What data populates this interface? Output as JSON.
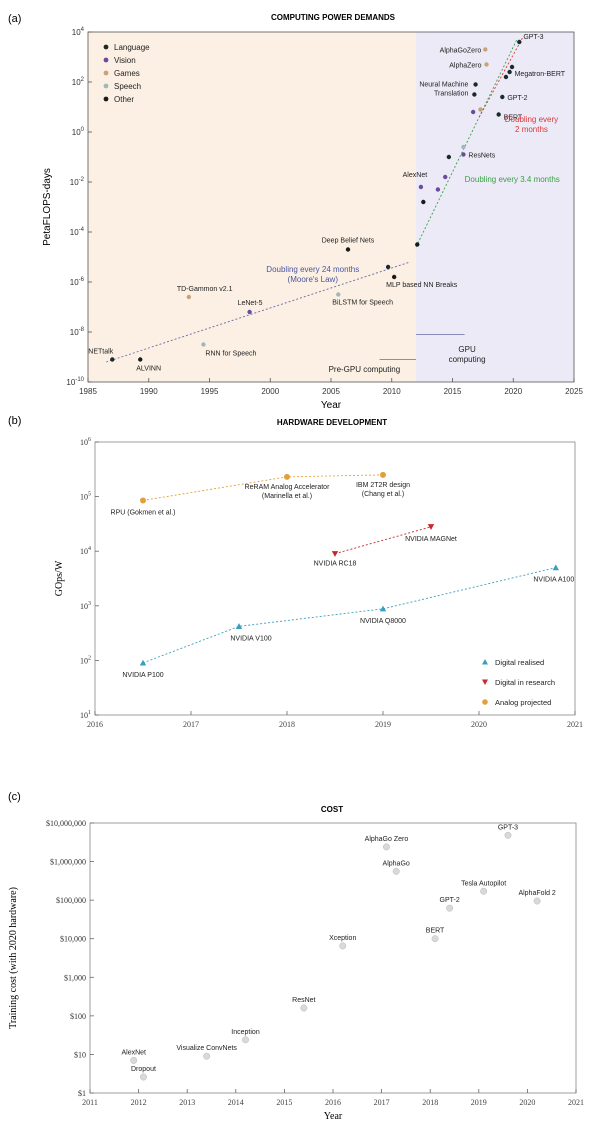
{
  "panels": {
    "a": {
      "label": "(a)"
    },
    "b": {
      "label": "(b)"
    },
    "c": {
      "label": "(c)"
    }
  },
  "colors": {
    "language": "#1b2b2b",
    "vision": "#6a4c9c",
    "games": "#c9a27a",
    "speech": "#9fb8b8",
    "other": "#1a1a1a",
    "pre_gpu_bg": "#fbf0e3",
    "gpu_bg": "#eceaf7",
    "moore_text": "#4a55a0",
    "gpu_text": "#3aa046",
    "red_text": "#d83a3a",
    "digital_realised": "#3a9fbf",
    "digital_research": "#c82828",
    "analog_projected": "#e1a03a",
    "cost_marker": "#d9d9d9"
  },
  "chart_data": [
    {
      "type": "scatter",
      "title": "COMPUTING POWER DEMANDS",
      "xlabel": "Year",
      "ylabel": "PetaFLOPS-days",
      "xlim": [
        1985,
        2025
      ],
      "ylim_log10": [
        -10,
        4
      ],
      "x_ticks": [
        "1985",
        "1990",
        "1995",
        "2000",
        "2005",
        "2010",
        "2015",
        "2020",
        "2025"
      ],
      "y_ticks": [
        "10^-10",
        "10^-8",
        "10^-6",
        "10^-4",
        "10^-2",
        "10^0",
        "10^2",
        "10^4"
      ],
      "legend_position": "top-left",
      "legend": [
        "Language",
        "Vision",
        "Games",
        "Speech",
        "Other"
      ],
      "points": [
        {
          "label": "NETtalk",
          "x": 1987,
          "y": -9.1,
          "cat": "language"
        },
        {
          "label": "ALVINN",
          "x": 1989.3,
          "y": -9.1,
          "cat": "other"
        },
        {
          "label": "TD-Gammon v2.1",
          "x": 1993.3,
          "y": -6.6,
          "cat": "games"
        },
        {
          "label": "RNN for Speech",
          "x": 1994.5,
          "y": -8.5,
          "cat": "speech"
        },
        {
          "label": "LeNet-5",
          "x": 1998.3,
          "y": -7.2,
          "cat": "vision"
        },
        {
          "label": "Deep Belief Nets",
          "x": 2006.4,
          "y": -4.7,
          "cat": "other"
        },
        {
          "label": "BiLSTM for Speech",
          "x": 2005.6,
          "y": -6.5,
          "cat": "speech"
        },
        {
          "label": "MLP based NN Breaks",
          "x": 2010.2,
          "y": -5.8,
          "cat": "other"
        },
        {
          "label": "",
          "x": 2009.7,
          "y": -5.4,
          "cat": "language"
        },
        {
          "label": "AlexNet",
          "x": 2012.4,
          "y": -2.2,
          "cat": "vision"
        },
        {
          "label": "",
          "x": 2012.1,
          "y": -4.5,
          "cat": "other"
        },
        {
          "label": "",
          "x": 2012.6,
          "y": -2.8,
          "cat": "other"
        },
        {
          "label": "",
          "x": 2013.8,
          "y": -2.3,
          "cat": "vision"
        },
        {
          "label": "",
          "x": 2014.4,
          "y": -1.8,
          "cat": "vision"
        },
        {
          "label": "",
          "x": 2014.7,
          "y": -1.0,
          "cat": "language"
        },
        {
          "label": "ResNets",
          "x": 2015.9,
          "y": -0.9,
          "cat": "vision"
        },
        {
          "label": "",
          "x": 2015.9,
          "y": -0.6,
          "cat": "speech"
        },
        {
          "label": "Neural Machine Translation",
          "x": 2016.8,
          "y": 1.5,
          "cat": "language"
        },
        {
          "label": "",
          "x": 2016.7,
          "y": 0.8,
          "cat": "vision"
        },
        {
          "label": "",
          "x": 2016.9,
          "y": 1.9,
          "cat": "language"
        },
        {
          "label": "",
          "x": 2017.3,
          "y": 0.9,
          "cat": "games"
        },
        {
          "label": "AlphaGoZero",
          "x": 2017.7,
          "y": 3.3,
          "cat": "games"
        },
        {
          "label": "AlphaZero",
          "x": 2017.8,
          "y": 2.7,
          "cat": "games"
        },
        {
          "label": "GPT-2",
          "x": 2019.1,
          "y": 1.4,
          "cat": "language"
        },
        {
          "label": "BERT",
          "x": 2018.8,
          "y": 0.7,
          "cat": "language"
        },
        {
          "label": "Megatron-BERT",
          "x": 2019.7,
          "y": 2.4,
          "cat": "language"
        },
        {
          "label": "",
          "x": 2019.9,
          "y": 2.6,
          "cat": "language"
        },
        {
          "label": "",
          "x": 2019.4,
          "y": 2.2,
          "cat": "language"
        },
        {
          "label": "GPT-3",
          "x": 2020.5,
          "y": 3.6,
          "cat": "language"
        }
      ],
      "annotations": {
        "moore_line1": "Doubling every 24 months",
        "moore_line2": "(Moore's Law)",
        "gpu_trend": "Doubling every 3.4 months",
        "red_line1": "Doubling every",
        "red_line2": "2 months",
        "gpu_label_line1": "GPU",
        "gpu_label_line2": "computing",
        "pre_gpu_label": "Pre-GPU computing"
      },
      "gpu_start_year": 2012
    },
    {
      "type": "scatter",
      "title": "HARDWARE DEVELOPMENT",
      "xlabel": "",
      "ylabel": "GOps/W",
      "xlim": [
        2016,
        2021
      ],
      "ylim_log10": [
        1,
        6
      ],
      "x_ticks": [
        "2016",
        "2017",
        "2018",
        "2019",
        "2020",
        "2021"
      ],
      "y_ticks": [
        "10^1",
        "10^2",
        "10^3",
        "10^4",
        "10^5",
        "10^6"
      ],
      "legend_position": "bottom-right",
      "series": [
        {
          "name": "Digital realised",
          "marker": "triangle-up",
          "points": [
            {
              "label": "NVIDIA P100",
              "x": 2016.5,
              "y": 90
            },
            {
              "label": "NVIDIA V100",
              "x": 2017.5,
              "y": 420
            },
            {
              "label": "NVIDIA Q8000",
              "x": 2019.0,
              "y": 880
            },
            {
              "label": "NVIDIA A100",
              "x": 2020.8,
              "y": 5000
            }
          ]
        },
        {
          "name": "Digital in research",
          "marker": "triangle-down",
          "points": [
            {
              "label": "NVIDIA RC18",
              "x": 2018.5,
              "y": 9000
            },
            {
              "label": "NVIDIA MAGNet",
              "x": 2019.5,
              "y": 28000
            }
          ]
        },
        {
          "name": "Analog projected",
          "marker": "circle",
          "points": [
            {
              "label": "RPU (Gokmen et al.)",
              "x": 2016.5,
              "y": 85000
            },
            {
              "label": "ReRAM Analog Accelerator (Marinella et al.)",
              "x": 2018.0,
              "y": 230000
            },
            {
              "label": "IBM 2T2R design (Chang et al.)",
              "x": 2019.0,
              "y": 250000
            }
          ]
        }
      ]
    },
    {
      "type": "scatter",
      "title": "COST",
      "xlabel": "Year",
      "ylabel": "Training cost (with 2020 hardware)",
      "xlim": [
        2011,
        2021
      ],
      "ylim_log10": [
        0,
        7
      ],
      "x_ticks": [
        "2011",
        "2012",
        "2013",
        "2014",
        "2015",
        "2016",
        "2017",
        "2018",
        "2019",
        "2020",
        "2021"
      ],
      "y_ticks": [
        "$1",
        "$10",
        "$100",
        "$1,000",
        "$10,000",
        "$100,000",
        "$1,000,000",
        "$10,000,000"
      ],
      "points": [
        {
          "label": "AlexNet",
          "x": 2011.9,
          "y": 7
        },
        {
          "label": "Dropout",
          "x": 2012.1,
          "y": 2.6
        },
        {
          "label": "Visualize ConvNets",
          "x": 2013.4,
          "y": 9
        },
        {
          "label": "Inception",
          "x": 2014.2,
          "y": 24
        },
        {
          "label": "ResNet",
          "x": 2015.4,
          "y": 160
        },
        {
          "label": "Xception",
          "x": 2016.2,
          "y": 6500
        },
        {
          "label": "AlphaGo Zero",
          "x": 2017.1,
          "y": 2400000
        },
        {
          "label": "AlphaGo",
          "x": 2017.3,
          "y": 560000
        },
        {
          "label": "BERT",
          "x": 2018.1,
          "y": 10000
        },
        {
          "label": "GPT-2",
          "x": 2018.4,
          "y": 62000
        },
        {
          "label": "Tesla Autopilot",
          "x": 2019.1,
          "y": 170000
        },
        {
          "label": "GPT-3",
          "x": 2019.6,
          "y": 4800000
        },
        {
          "label": "AlphaFold 2",
          "x": 2020.2,
          "y": 95000
        }
      ]
    }
  ]
}
